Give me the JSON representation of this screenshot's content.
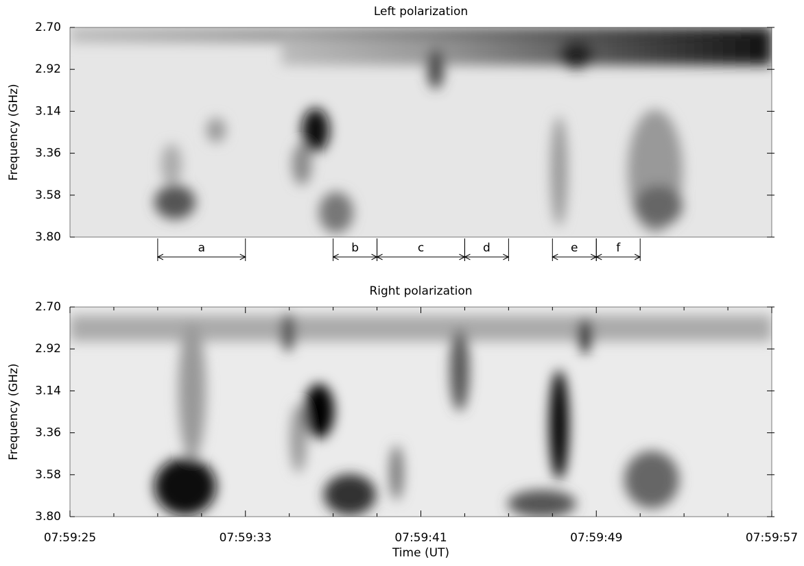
{
  "chart_data": [
    {
      "type": "heatmap",
      "title": "Left polarization",
      "ylabel": "Frequency (GHz)",
      "xlim": [
        25,
        57
      ],
      "ylim": [
        2.7,
        3.8
      ],
      "yticks": [
        {
          "value": 2.7,
          "label": "2.70"
        },
        2.92,
        3.14,
        3.36,
        3.58,
        {
          "value": 3.8,
          "label": "3.80"
        }
      ],
      "annotations": [
        {
          "label": "a",
          "start": 29,
          "end": 33
        },
        {
          "label": "b",
          "start": 37,
          "end": 39
        },
        {
          "label": "c",
          "start": 39,
          "end": 43
        },
        {
          "label": "d",
          "start": 43,
          "end": 45
        },
        {
          "label": "e",
          "start": 47,
          "end": 49
        },
        {
          "label": "f",
          "start": 49,
          "end": 51
        }
      ]
    },
    {
      "type": "heatmap",
      "title": "Right polarization",
      "ylabel": "Frequency (GHz)",
      "xlabel": "Time (UT)",
      "xlim": [
        25,
        57
      ],
      "xticks": [
        {
          "value": 25,
          "label": "07:59:25"
        },
        {
          "value": 33,
          "label": "07:59:33"
        },
        {
          "value": 41,
          "label": "07:59:41"
        },
        {
          "value": 49,
          "label": "07:59:49"
        },
        {
          "value": 57,
          "label": "07:59:57"
        }
      ],
      "xminor_ticks": [
        27,
        29,
        31,
        35,
        37,
        39,
        43,
        45,
        47,
        51,
        53,
        55
      ],
      "ylim": [
        2.7,
        3.8
      ],
      "yticks": [
        {
          "value": 2.7,
          "label": "2.70"
        },
        2.92,
        3.14,
        3.36,
        3.58,
        {
          "value": 3.8,
          "label": "3.80"
        }
      ]
    }
  ]
}
